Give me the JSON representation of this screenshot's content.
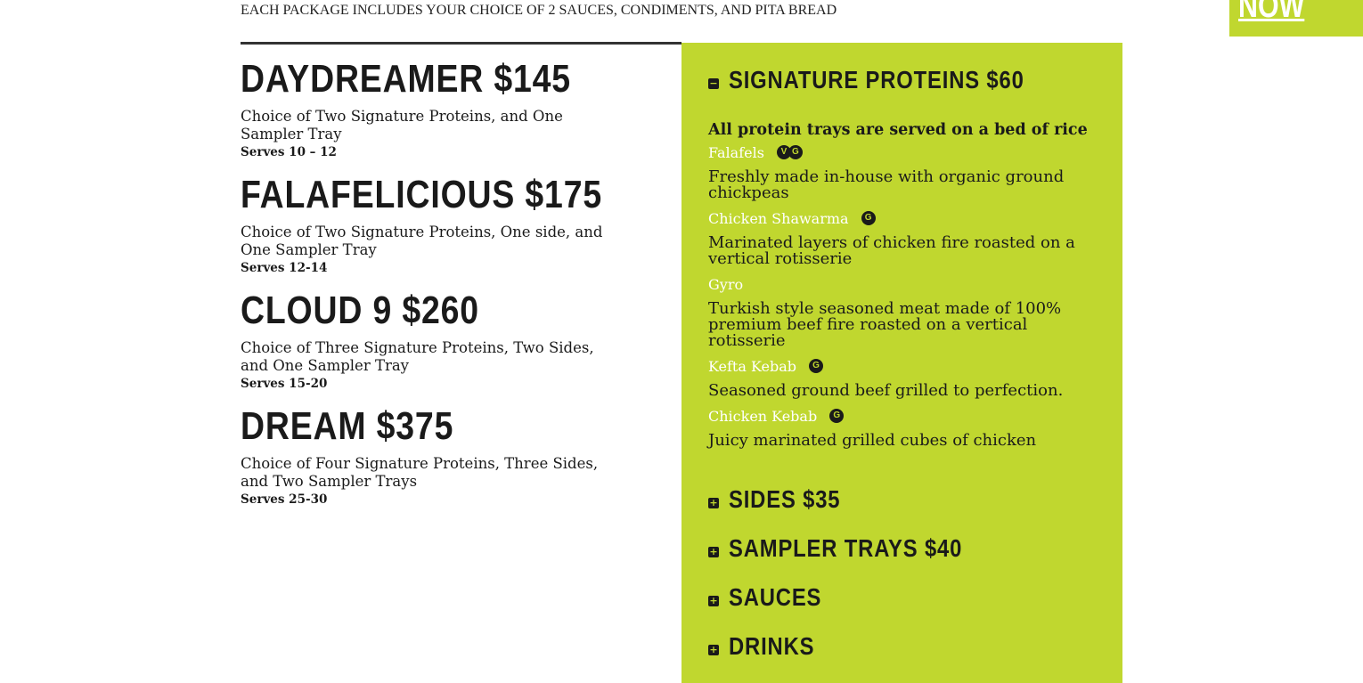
{
  "intro": "EACH PACKAGE INCLUDES YOUR CHOICE OF 2 SAUCES, CONDIMENTS, AND PITA BREAD",
  "now_button": "NOW",
  "packages": [
    {
      "title": "DAYDREAMER $145",
      "desc": "Choice of Two Signature Proteins, and One Sampler Tray",
      "serves": "Serves 10 – 12"
    },
    {
      "title": "FALAFELICIOUS $175",
      "desc": "Choice of Two Signature Proteins, One side, and One Sampler Tray",
      "serves": "Serves 12-14"
    },
    {
      "title": "CLOUD 9 $260",
      "desc": "Choice of Three Signature Proteins, Two Sides, and One Sampler Tray",
      "serves": "Serves 15-20"
    },
    {
      "title": "DREAM $375",
      "desc": "Choice of Four Signature Proteins, Three Sides, and Two Sampler Trays",
      "serves": "Serves 25-30"
    }
  ],
  "accent_color": "#c0d72f",
  "sections": {
    "proteins": {
      "title": "SIGNATURE PROTEINS $60",
      "icon": "minus",
      "note": "All protein trays are served on a bed of rice",
      "items": [
        {
          "name": "Falafels",
          "badges": [
            "V",
            "G"
          ],
          "desc": "Freshly made in-house with organic ground chickpeas"
        },
        {
          "name": "Chicken Shawarma",
          "badges": [
            "G"
          ],
          "desc": "Marinated layers of chicken fire roasted on a vertical rotisserie"
        },
        {
          "name": "Gyro",
          "badges": [],
          "desc": "Turkish style seasoned meat made of 100% premium beef fire roasted on a vertical rotisserie"
        },
        {
          "name": "Kefta Kebab",
          "badges": [
            "G"
          ],
          "desc": "Seasoned ground beef grilled to perfection."
        },
        {
          "name": "Chicken Kebab",
          "badges": [
            "G"
          ],
          "desc": "Juicy marinated grilled cubes of chicken"
        }
      ]
    },
    "sides": {
      "title": "SIDES $35",
      "icon": "plus"
    },
    "sampler": {
      "title": "SAMPLER TRAYS $40",
      "icon": "plus"
    },
    "sauces": {
      "title": "SAUCES",
      "icon": "plus"
    },
    "drinks": {
      "title": "DRINKS",
      "icon": "plus"
    }
  },
  "icons": {
    "minus": "−",
    "plus": "+"
  }
}
